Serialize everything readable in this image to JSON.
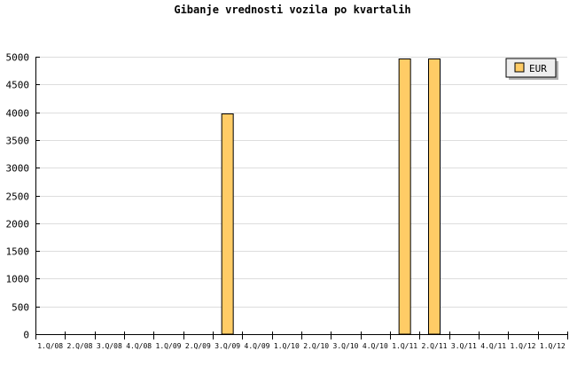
{
  "chart_data": {
    "type": "bar",
    "title": "Gibanje vrednosti vozila po kvartalih",
    "xlabel": "",
    "ylabel": "",
    "categories": [
      "1.Q/08",
      "2.Q/08",
      "3.Q/08",
      "4.Q/08",
      "1.Q/09",
      "2.Q/09",
      "3.Q/09",
      "4.Q/09",
      "1.Q/10",
      "2.Q/10",
      "3.Q/10",
      "4.Q/10",
      "1.Q/11",
      "2.Q/11",
      "3.Q/11",
      "4.Q/11",
      "1.Q/12",
      "1.Q/12"
    ],
    "series": [
      {
        "name": "EUR",
        "color": "#ffcc66",
        "values": [
          0,
          0,
          0,
          0,
          0,
          0,
          3970,
          0,
          0,
          0,
          0,
          0,
          4960,
          4960,
          0,
          0,
          0,
          0
        ]
      }
    ],
    "ylim": [
      0,
      5000
    ],
    "yticks": [
      0,
      500,
      1000,
      1500,
      2000,
      2500,
      3000,
      3500,
      4000,
      4500,
      5000
    ],
    "grid": true,
    "legend": "top-right"
  }
}
